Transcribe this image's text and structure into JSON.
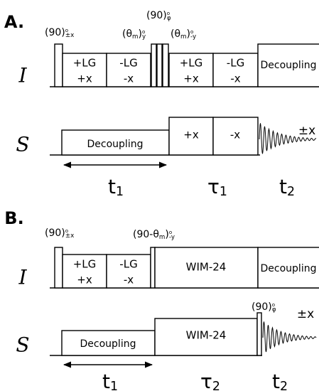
{
  "panel_a": {
    "label": "A.",
    "channels": [
      "I",
      "S"
    ],
    "pulse_labels": [
      [
        {
          "t": "(90)"
        },
        {
          "t": "o",
          "s": "sup"
        },
        {
          "t": "±x",
          "s": "sub"
        }
      ],
      [
        {
          "t": "(θ"
        },
        {
          "t": "m",
          "s": "sub"
        },
        {
          "t": ")"
        },
        {
          "t": "o",
          "s": "sup"
        },
        {
          "t": "y",
          "s": "sub"
        }
      ],
      [
        {
          "t": "(90)"
        },
        {
          "t": "o",
          "s": "sup"
        },
        {
          "t": "φ",
          "s": "sub"
        }
      ],
      [
        {
          "t": "(θ"
        },
        {
          "t": "m",
          "s": "sub"
        },
        {
          "t": ")"
        },
        {
          "t": "o",
          "s": "sup"
        },
        {
          "t": "-y",
          "s": "sub"
        }
      ]
    ],
    "i_boxes": [
      [
        "+LG",
        "+x"
      ],
      [
        "-LG",
        "-x"
      ],
      [
        "+LG",
        "+x"
      ],
      [
        "-LG",
        "-x"
      ]
    ],
    "i_decoupling": "Decoupling",
    "s_decoupling": "Decoupling",
    "s_boxes": [
      "+x",
      "-x"
    ],
    "detect_phase": "±x",
    "periods": [
      [
        {
          "t": "t"
        },
        {
          "t": "1",
          "s": "sub"
        }
      ],
      [
        {
          "t": "τ"
        },
        {
          "t": "1",
          "s": "sub"
        }
      ],
      [
        {
          "t": "t"
        },
        {
          "t": "2",
          "s": "sub"
        }
      ]
    ]
  },
  "panel_b": {
    "label": "B.",
    "channels": [
      "I",
      "S"
    ],
    "pulse_labels": [
      [
        {
          "t": "(90)"
        },
        {
          "t": "o",
          "s": "sup"
        },
        {
          "t": "±x",
          "s": "sub"
        }
      ],
      [
        {
          "t": "(90-θ"
        },
        {
          "t": "m",
          "s": "sub"
        },
        {
          "t": ")"
        },
        {
          "t": "o",
          "s": "sup"
        },
        {
          "t": "-y",
          "s": "sub"
        }
      ],
      [
        {
          "t": "(90)"
        },
        {
          "t": "o",
          "s": "sup"
        },
        {
          "t": "φ",
          "s": "sub"
        }
      ]
    ],
    "i_boxes": [
      [
        "+LG",
        "+x"
      ],
      [
        "-LG",
        "-x"
      ]
    ],
    "i_wim": "WIM-24",
    "i_decoupling": "Decoupling",
    "s_decoupling": "Decoupling",
    "s_wim": "WIM-24",
    "detect_phase": "±x",
    "periods": [
      [
        {
          "t": "t"
        },
        {
          "t": "1",
          "s": "sub"
        }
      ],
      [
        {
          "t": "τ"
        },
        {
          "t": "2",
          "s": "sub"
        }
      ],
      [
        {
          "t": "t"
        },
        {
          "t": "2",
          "s": "sub"
        }
      ]
    ]
  }
}
